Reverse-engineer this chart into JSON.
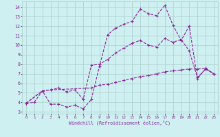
{
  "xlabel": "Windchill (Refroidissement éolien,°C)",
  "background_color": "#cff0f0",
  "grid_color": "#aacccc",
  "line_color": "#882299",
  "xlim": [
    -0.5,
    23.5
  ],
  "ylim": [
    2.8,
    14.6
  ],
  "xticks": [
    0,
    1,
    2,
    3,
    4,
    5,
    6,
    7,
    8,
    9,
    10,
    11,
    12,
    13,
    14,
    15,
    16,
    17,
    18,
    19,
    20,
    21,
    22,
    23
  ],
  "yticks": [
    3,
    4,
    5,
    6,
    7,
    8,
    9,
    10,
    11,
    12,
    13,
    14
  ],
  "line1_x": [
    0,
    1,
    2,
    3,
    4,
    5,
    6,
    7,
    8,
    9,
    10,
    11,
    12,
    13,
    14,
    15,
    16,
    17,
    18,
    19,
    20,
    21,
    22,
    23
  ],
  "line1_y": [
    3.9,
    4.0,
    5.2,
    3.8,
    3.8,
    3.5,
    3.7,
    3.3,
    4.3,
    7.8,
    11.1,
    11.8,
    12.2,
    12.5,
    13.8,
    13.3,
    13.1,
    14.2,
    12.1,
    10.5,
    12.0,
    6.5,
    7.5,
    7.0
  ],
  "line2_x": [
    0,
    2,
    3,
    4,
    5,
    6,
    7,
    8,
    9,
    10,
    11,
    12,
    13,
    14,
    15,
    16,
    17,
    18,
    19,
    20,
    21,
    22,
    23
  ],
  "line2_y": [
    3.9,
    5.2,
    5.3,
    5.5,
    5.1,
    5.3,
    4.3,
    7.9,
    8.0,
    8.5,
    9.2,
    9.7,
    10.2,
    10.5,
    10.0,
    9.8,
    10.7,
    10.3,
    10.6,
    9.4,
    6.6,
    7.5,
    7.0
  ],
  "line3_x": [
    0,
    2,
    3,
    8,
    9,
    10,
    11,
    12,
    13,
    14,
    15,
    16,
    17,
    18,
    19,
    20,
    21,
    22,
    23
  ],
  "line3_y": [
    3.9,
    5.2,
    5.3,
    5.5,
    5.8,
    5.9,
    6.1,
    6.3,
    6.5,
    6.7,
    6.8,
    7.0,
    7.2,
    7.3,
    7.4,
    7.5,
    7.5,
    7.6,
    7.0
  ]
}
